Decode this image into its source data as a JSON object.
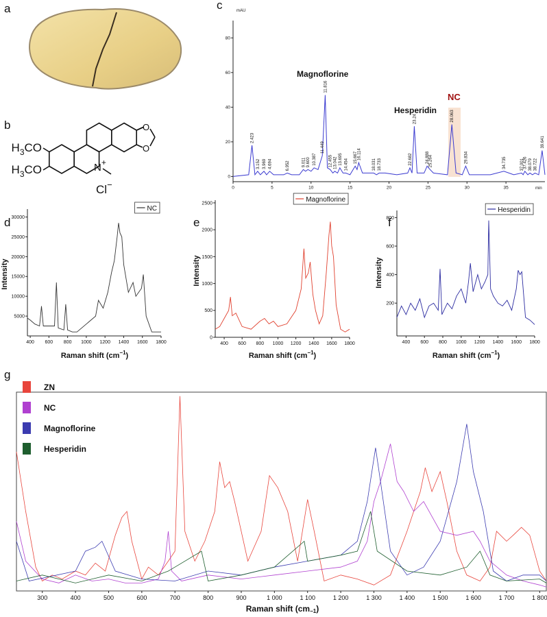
{
  "photo": {
    "panel": "a"
  },
  "structure": {
    "panel": "b",
    "methoxy_1": [
      "H",
      "3",
      "CO"
    ],
    "methoxy_2": [
      "H",
      "3",
      "CO"
    ],
    "ring_oxygens": [
      "O",
      "O"
    ],
    "nitrogen": [
      "N",
      "+"
    ],
    "counterion": [
      "Cl",
      "−"
    ]
  },
  "chart_data": [
    {
      "type": "line",
      "panel": "c",
      "ylabel": "mAU",
      "xlabel": "min",
      "color": "#3a3ad0",
      "frame": false,
      "annotations": [
        "Magnoflorine",
        "Hesperidin",
        "NC"
      ],
      "xlim": [
        0,
        40
      ],
      "ylim": [
        -3,
        90
      ],
      "xticks": [
        0,
        5,
        10,
        15,
        20,
        25,
        30,
        35
      ],
      "yticks": [
        0,
        20,
        40,
        60,
        80
      ],
      "x": [
        0,
        2,
        2.423,
        2.8,
        3.152,
        3.5,
        3.969,
        4.3,
        4.694,
        5.2,
        6.5,
        6.952,
        7.5,
        8.5,
        9.011,
        9.3,
        9.6,
        10,
        10.387,
        10.9,
        11.449,
        11.816,
        12.1,
        12.455,
        12.8,
        13.042,
        13.4,
        13.695,
        14.1,
        14.454,
        15,
        15.667,
        15.9,
        16.114,
        16.6,
        17.5,
        18.031,
        18.4,
        18.733,
        19.5,
        21,
        22.4,
        22.682,
        22.95,
        23.24,
        23.6,
        24.5,
        24.888,
        25.264,
        25.7,
        27.5,
        28.063,
        28.6,
        29.4,
        29.834,
        30.3,
        33,
        34.735,
        36,
        37.001,
        37.2,
        37.426,
        37.8,
        38.079,
        38.4,
        38.722,
        39.2,
        39.641,
        40
      ],
      "values": [
        0,
        1,
        18,
        1,
        3,
        1,
        3,
        1,
        3,
        1,
        1,
        2,
        1,
        1,
        4,
        3,
        4,
        3,
        5,
        4,
        12,
        47,
        5,
        4,
        2,
        3,
        2,
        5,
        2,
        2,
        1,
        6,
        4,
        8,
        2,
        2,
        2,
        1,
        2,
        2,
        1,
        2,
        5,
        2,
        29,
        2,
        2,
        6,
        4,
        2,
        1,
        30,
        2,
        1,
        6,
        1,
        1,
        3,
        1,
        2,
        1,
        3,
        1,
        2,
        1,
        2,
        1,
        15,
        1
      ],
      "peaks": [
        2.423,
        3.152,
        3.969,
        4.694,
        6.952,
        9.011,
        {
          "value": 9.6,
          "label": "9.600"
        },
        10.387,
        11.449,
        11.816,
        12.455,
        13.042,
        13.695,
        14.454,
        15.667,
        16.114,
        18.031,
        18.733,
        22.682,
        23.24,
        24.888,
        25.264,
        28.063,
        29.834,
        34.735,
        37.001,
        37.426,
        38.079,
        38.722,
        39.641
      ]
    },
    {
      "type": "line",
      "panel": "d",
      "ylabel": "Intensity",
      "xlabel": [
        "Raman shift (cm",
        "−1",
        ")"
      ],
      "legend": "upper right",
      "frame": false,
      "xlim": [
        370,
        1800
      ],
      "ylim": [
        0,
        32000
      ],
      "xticks": [
        400,
        600,
        800,
        1000,
        1200,
        1400,
        1600,
        1800
      ],
      "yticks": [
        5000,
        10000,
        15000,
        20000,
        25000,
        30000
      ],
      "x": [
        370,
        400,
        450,
        500,
        520,
        540,
        600,
        660,
        680,
        700,
        760,
        780,
        800,
        850,
        900,
        1000,
        1100,
        1130,
        1180,
        1230,
        1270,
        1300,
        1330,
        1345,
        1360,
        1380,
        1400,
        1450,
        1500,
        1530,
        1560,
        1590,
        1610,
        1640,
        1700,
        1750,
        1800
      ],
      "series": [
        {
          "name": "NC",
          "color": "#333333",
          "values": [
            4500,
            4000,
            3000,
            2500,
            7500,
            2500,
            2500,
            2500,
            13500,
            2000,
            1500,
            8000,
            1500,
            1000,
            1000,
            3000,
            5000,
            9000,
            7000,
            11000,
            16000,
            19000,
            25000,
            28500,
            26000,
            25000,
            18000,
            11000,
            13500,
            10000,
            11000,
            12000,
            15500,
            5000,
            1000,
            1000,
            1000
          ]
        }
      ]
    },
    {
      "type": "line",
      "panel": "e",
      "ylabel": "Intensity",
      "xlabel": [
        "Raman shift (cm",
        "−1",
        ")"
      ],
      "legend": "upper right",
      "frame": false,
      "xlim": [
        300,
        1800
      ],
      "ylim": [
        0,
        2550
      ],
      "xticks": [
        400,
        600,
        800,
        1000,
        1200,
        1400,
        1600,
        1800
      ],
      "yticks": [
        0,
        500,
        1000,
        1500,
        2000,
        2500
      ],
      "x": [
        300,
        350,
        400,
        450,
        470,
        490,
        530,
        600,
        700,
        800,
        850,
        900,
        950,
        1000,
        1100,
        1200,
        1260,
        1290,
        1310,
        1340,
        1360,
        1390,
        1420,
        1460,
        1500,
        1540,
        1570,
        1585,
        1600,
        1620,
        1650,
        1700,
        1750,
        1800
      ],
      "series": [
        {
          "name": "Magnoflorine",
          "color": "#e0402e",
          "values": [
            150,
            200,
            350,
            500,
            750,
            400,
            450,
            200,
            150,
            300,
            350,
            250,
            300,
            200,
            250,
            500,
            900,
            1650,
            1100,
            1200,
            1400,
            800,
            500,
            250,
            400,
            1200,
            1900,
            2150,
            1700,
            1500,
            600,
            150,
            100,
            150
          ]
        }
      ]
    },
    {
      "type": "line",
      "panel": "f",
      "ylabel": "Intensity",
      "xlabel": [
        "Raman shift (cm",
        "−1",
        ")"
      ],
      "legend": "upper right",
      "frame": false,
      "xlim": [
        300,
        1800
      ],
      "ylim": [
        -30,
        850
      ],
      "xticks": [
        400,
        600,
        800,
        1000,
        1200,
        1400,
        1600,
        1800
      ],
      "yticks": [
        200,
        400,
        600,
        800
      ],
      "x": [
        300,
        350,
        400,
        450,
        500,
        550,
        600,
        650,
        700,
        750,
        770,
        790,
        850,
        900,
        950,
        1000,
        1050,
        1080,
        1100,
        1130,
        1180,
        1220,
        1260,
        1290,
        1300,
        1320,
        1350,
        1400,
        1450,
        1500,
        1550,
        1600,
        1620,
        1640,
        1660,
        1700,
        1750,
        1800
      ],
      "series": [
        {
          "name": "Hesperidin",
          "color": "#2a2aa0",
          "values": [
            100,
            180,
            120,
            200,
            150,
            230,
            100,
            180,
            200,
            150,
            440,
            120,
            200,
            160,
            250,
            300,
            200,
            350,
            480,
            280,
            400,
            300,
            350,
            400,
            780,
            300,
            250,
            200,
            180,
            220,
            150,
            300,
            430,
            400,
            420,
            100,
            80,
            50
          ]
        }
      ]
    },
    {
      "type": "line",
      "panel": "g",
      "xlabel": [
        "Raman shift (cm",
        "−1",
        ")"
      ],
      "legend": "upper left",
      "frame": true,
      "xlim": [
        222,
        1820
      ],
      "ylim": [
        0,
        100
      ],
      "xticks": [
        300,
        400,
        500,
        600,
        700,
        800,
        900,
        {
          "value": 1000,
          "label": "1 000"
        },
        {
          "value": 1100,
          "label": "1 100"
        },
        {
          "value": 1200,
          "label": "1 200"
        },
        {
          "value": 1300,
          "label": "1 300"
        },
        {
          "value": 1400,
          "label": "1 400"
        },
        {
          "value": 1500,
          "label": "1 500"
        },
        {
          "value": 1600,
          "label": "1 600"
        },
        {
          "value": 1700,
          "label": "1 700"
        },
        {
          "value": 1800,
          "label": "1 800"
        }
      ],
      "series": [
        {
          "name": "ZN",
          "color": "#e8453c",
          "x": [
            222,
            250,
            280,
            300,
            330,
            360,
            400,
            430,
            460,
            490,
            520,
            540,
            555,
            570,
            600,
            620,
            650,
            680,
            700,
            715,
            730,
            760,
            790,
            820,
            835,
            850,
            865,
            880,
            920,
            960,
            985,
            1010,
            1040,
            1070,
            1100,
            1120,
            1150,
            1200,
            1250,
            1300,
            1350,
            1400,
            1420,
            1440,
            1455,
            1475,
            1500,
            1520,
            1550,
            1580,
            1620,
            1650,
            1670,
            1700,
            1720,
            1745,
            1770,
            1800,
            1820
          ],
          "values": [
            70,
            40,
            12,
            5,
            8,
            6,
            10,
            8,
            14,
            10,
            28,
            37,
            40,
            25,
            6,
            12,
            8,
            15,
            20,
            98,
            30,
            15,
            25,
            40,
            65,
            52,
            55,
            45,
            15,
            30,
            58,
            52,
            40,
            15,
            46,
            30,
            5,
            8,
            6,
            3,
            8,
            30,
            40,
            50,
            62,
            50,
            60,
            45,
            20,
            8,
            5,
            12,
            30,
            25,
            28,
            32,
            28,
            10,
            5
          ]
        },
        {
          "name": "NC",
          "color": "#b040d0",
          "x": [
            222,
            250,
            300,
            350,
            400,
            450,
            500,
            550,
            600,
            650,
            670,
            680,
            690,
            720,
            800,
            900,
            1000,
            1100,
            1200,
            1250,
            1280,
            1300,
            1320,
            1350,
            1370,
            1390,
            1420,
            1450,
            1500,
            1550,
            1600,
            1620,
            1650,
            1700,
            1750,
            1800,
            1820
          ],
          "values": [
            35,
            15,
            6,
            4,
            8,
            5,
            6,
            4,
            4,
            6,
            15,
            30,
            10,
            5,
            8,
            6,
            8,
            10,
            12,
            15,
            25,
            45,
            55,
            74,
            55,
            50,
            40,
            45,
            30,
            28,
            30,
            25,
            15,
            8,
            5,
            3,
            2
          ]
        },
        {
          "name": "Magnoflorine",
          "color": "#3b3bb0",
          "x": [
            222,
            260,
            400,
            430,
            460,
            480,
            520,
            600,
            700,
            800,
            900,
            1000,
            1100,
            1200,
            1250,
            1280,
            1305,
            1320,
            1350,
            1400,
            1450,
            1500,
            1550,
            1580,
            1600,
            1630,
            1660,
            1700,
            1750,
            1800,
            1820
          ],
          "values": [
            25,
            5,
            10,
            20,
            22,
            25,
            10,
            6,
            5,
            10,
            8,
            12,
            15,
            18,
            25,
            45,
            72,
            55,
            20,
            8,
            12,
            25,
            55,
            84,
            60,
            40,
            10,
            5,
            8,
            8,
            5
          ]
        },
        {
          "name": "Hesperidin",
          "color": "#1e5e2e",
          "x": [
            222,
            300,
            400,
            500,
            600,
            680,
            780,
            800,
            900,
            1000,
            1090,
            1100,
            1200,
            1250,
            1290,
            1310,
            1400,
            1500,
            1580,
            1620,
            1650,
            1700,
            1800,
            1820
          ],
          "values": [
            5,
            8,
            4,
            8,
            5,
            10,
            20,
            5,
            8,
            12,
            25,
            15,
            18,
            20,
            40,
            20,
            10,
            8,
            12,
            20,
            8,
            5,
            6,
            4
          ]
        }
      ]
    }
  ]
}
